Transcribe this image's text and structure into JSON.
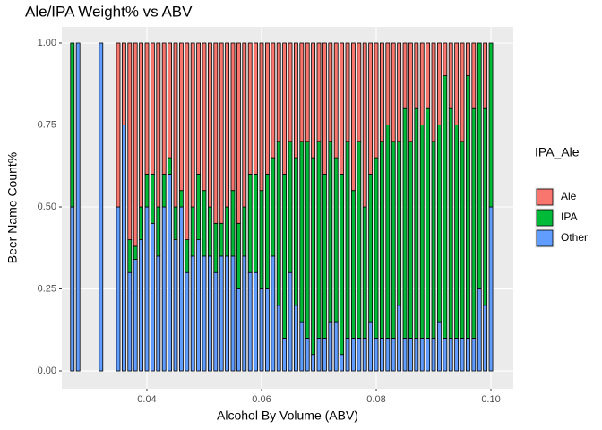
{
  "chart_data": {
    "type": "bar",
    "stacked": "fill",
    "title": "Ale/IPA Weight% vs ABV",
    "x_label": "Alcohol By Volume (ABV)",
    "y_label": "Beer Name Count%",
    "legend_title": "IPA_Ale",
    "x": [
      0.027,
      0.028,
      0.032,
      0.035,
      0.036,
      0.037,
      0.038,
      0.039,
      0.04,
      0.041,
      0.042,
      0.043,
      0.044,
      0.045,
      0.046,
      0.047,
      0.048,
      0.049,
      0.05,
      0.051,
      0.052,
      0.053,
      0.054,
      0.055,
      0.056,
      0.057,
      0.058,
      0.059,
      0.06,
      0.061,
      0.062,
      0.063,
      0.064,
      0.065,
      0.066,
      0.067,
      0.068,
      0.069,
      0.07,
      0.071,
      0.072,
      0.073,
      0.074,
      0.075,
      0.076,
      0.077,
      0.078,
      0.079,
      0.08,
      0.081,
      0.082,
      0.083,
      0.084,
      0.085,
      0.086,
      0.087,
      0.088,
      0.089,
      0.09,
      0.091,
      0.092,
      0.093,
      0.094,
      0.095,
      0.096,
      0.097,
      0.098,
      0.099,
      0.1
    ],
    "series": [
      {
        "name": "Ale",
        "color": "#f8766d",
        "values": [
          0,
          0,
          0,
          0.5,
          0.25,
          0.6,
          0.62,
          0.5,
          0.4,
          0.4,
          0.5,
          0.4,
          0.35,
          0.5,
          0.45,
          0.6,
          0.5,
          0.4,
          0.45,
          0.5,
          0.55,
          0.55,
          0.5,
          0.45,
          0.55,
          0.5,
          0.4,
          0.4,
          0.45,
          0.4,
          0.35,
          0.3,
          0.4,
          0.3,
          0.35,
          0.3,
          0.3,
          0.35,
          0.3,
          0.4,
          0.3,
          0.35,
          0.4,
          0.3,
          0.45,
          0.3,
          0.5,
          0.4,
          0.35,
          0.3,
          0.25,
          0.3,
          0.3,
          0.2,
          0.3,
          0.2,
          0.25,
          0.2,
          0.3,
          0.25,
          0.1,
          0.2,
          0.25,
          0.3,
          0.1,
          0.2,
          0,
          0.2,
          0
        ]
      },
      {
        "name": "IPA",
        "color": "#00ba38",
        "values": [
          0.5,
          0,
          0,
          0,
          0,
          0.1,
          0.04,
          0.1,
          0.1,
          0.15,
          0.15,
          0.1,
          0.05,
          0.1,
          0.05,
          0.1,
          0.15,
          0.2,
          0.2,
          0.15,
          0.15,
          0.1,
          0.15,
          0.2,
          0.2,
          0.15,
          0.3,
          0.3,
          0.3,
          0.35,
          0.3,
          0.5,
          0.5,
          0.4,
          0.45,
          0.55,
          0.6,
          0.6,
          0.6,
          0.5,
          0.55,
          0.5,
          0.55,
          0.6,
          0.45,
          0.6,
          0.4,
          0.45,
          0.55,
          0.6,
          0.65,
          0.6,
          0.5,
          0.7,
          0.6,
          0.7,
          0.65,
          0.7,
          0.6,
          0.6,
          0.8,
          0.7,
          0.65,
          0.6,
          0.8,
          0.7,
          0.75,
          0.6,
          0.5
        ]
      },
      {
        "name": "Other",
        "color": "#619cff",
        "values": [
          0.5,
          1,
          1,
          0.5,
          0.75,
          0.3,
          0.34,
          0.4,
          0.5,
          0.45,
          0.35,
          0.5,
          0.6,
          0.4,
          0.5,
          0.3,
          0.35,
          0.4,
          0.35,
          0.35,
          0.3,
          0.35,
          0.35,
          0.35,
          0.25,
          0.35,
          0.3,
          0.3,
          0.25,
          0.25,
          0.35,
          0.2,
          0.1,
          0.3,
          0.2,
          0.15,
          0.1,
          0.05,
          0.1,
          0.1,
          0.15,
          0.15,
          0.05,
          0.1,
          0.1,
          0.1,
          0.1,
          0.15,
          0.1,
          0.1,
          0.1,
          0.1,
          0.2,
          0.1,
          0.1,
          0.1,
          0.1,
          0.1,
          0.1,
          0.15,
          0.1,
          0.1,
          0.1,
          0.1,
          0.1,
          0.1,
          0.25,
          0.2,
          0.5
        ]
      }
    ],
    "xlim": [
      0.02516,
      0.1039
    ],
    "ylim": [
      -0.0546,
      1.0492
    ],
    "xticks": [
      0.04,
      0.06,
      0.08,
      {
        "value": 0.1,
        "label": "0.10"
      }
    ],
    "yticks": [
      {
        "value": 0,
        "label": "0.00"
      },
      {
        "value": 0.25,
        "label": "0.25"
      },
      {
        "value": 0.5,
        "label": "0.50"
      },
      {
        "value": 0.75,
        "label": "0.75"
      },
      {
        "value": 1,
        "label": "1.00"
      }
    ],
    "grid": true
  }
}
